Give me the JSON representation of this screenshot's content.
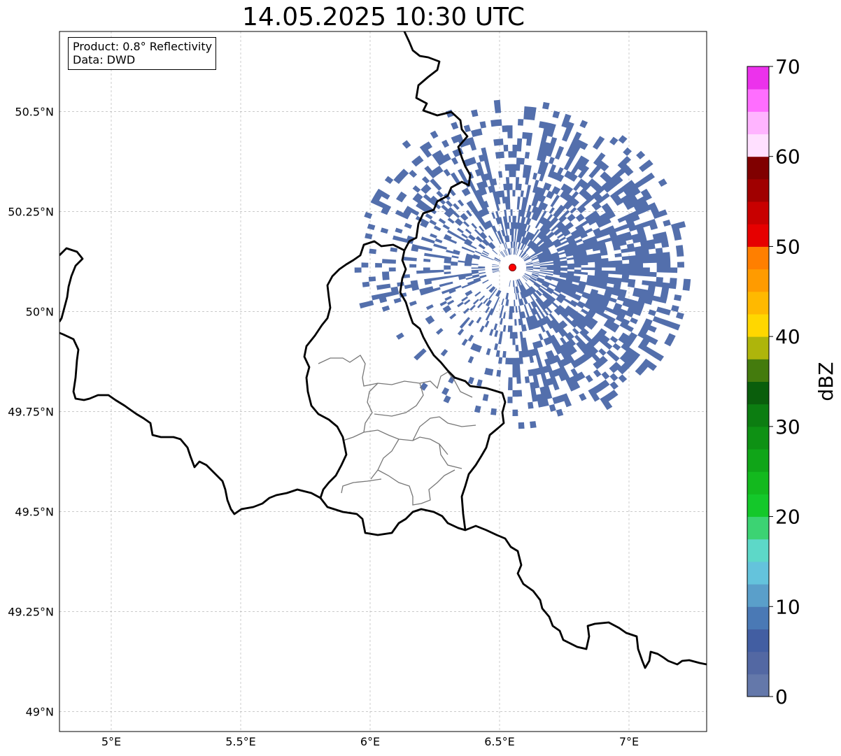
{
  "title": "14.05.2025 10:30 UTC",
  "info": {
    "product": "Product: 0.8° Reflectivity",
    "data": "Data: DWD"
  },
  "map": {
    "lon_range": [
      4.8,
      7.3
    ],
    "lat_range": [
      48.95,
      50.7
    ],
    "grid": true,
    "lon_ticks": [
      {
        "value": 5.0,
        "label": "5°E"
      },
      {
        "value": 5.5,
        "label": "5.5°E"
      },
      {
        "value": 6.0,
        "label": "6°E"
      },
      {
        "value": 6.5,
        "label": "6.5°E"
      },
      {
        "value": 7.0,
        "label": "7°E"
      }
    ],
    "lat_ticks": [
      {
        "value": 50.5,
        "label": "50.5°N"
      },
      {
        "value": 50.25,
        "label": "50.25°N"
      },
      {
        "value": 50.0,
        "label": "50°N"
      },
      {
        "value": 49.75,
        "label": "49.75°N"
      },
      {
        "value": 49.5,
        "label": "49.5°N"
      },
      {
        "value": 49.25,
        "label": "49.25°N"
      },
      {
        "value": 49.0,
        "label": "49°N"
      }
    ],
    "radar_site": {
      "lon": 6.55,
      "lat": 50.11,
      "color": "#ff0000"
    },
    "echo_color": "#4a67a8",
    "echo_max_range_deg_lon": 0.69,
    "echo_max_range_deg_lat": 0.42
  },
  "colorbar": {
    "label": "dBZ",
    "min": 0,
    "max": 70,
    "step": 2.5,
    "tick_labels": [
      "0",
      "10",
      "20",
      "30",
      "40",
      "50",
      "60",
      "70"
    ],
    "tick_values": [
      0,
      10,
      20,
      30,
      40,
      50,
      60,
      70
    ],
    "colors": [
      "#6478aa",
      "#5368a3",
      "#425ea2",
      "#4a79b5",
      "#5a9fca",
      "#64c3dc",
      "#5dd8c8",
      "#3cd373",
      "#14c82a",
      "#13b91e",
      "#10a518",
      "#0e9114",
      "#0c7d11",
      "#0a5e0c",
      "#447b0d",
      "#aeb50b",
      "#ffd700",
      "#ffb900",
      "#ff9b00",
      "#ff7f00",
      "#e60000",
      "#c80000",
      "#a00000",
      "#800000",
      "#ffe0ff",
      "#ffb4ff",
      "#ff6eff",
      "#ec32ec"
    ]
  }
}
